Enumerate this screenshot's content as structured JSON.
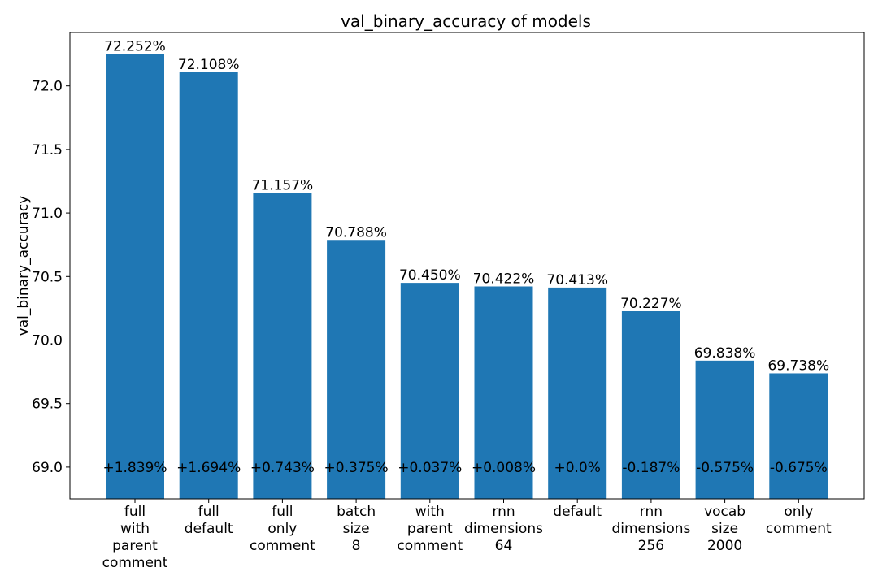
{
  "chart_data": {
    "type": "bar",
    "title": "val_binary_accuracy of models",
    "xlabel": "",
    "ylabel": "val_binary_accuracy",
    "ylim": [
      68.75,
      72.42
    ],
    "yticks": [
      "69.0",
      "69.5",
      "70.0",
      "70.5",
      "71.0",
      "71.5",
      "72.0"
    ],
    "bar_color": "#1f77b4",
    "grid": false,
    "categories": [
      [
        "full",
        "with",
        "parent",
        "comment"
      ],
      [
        "full",
        "default"
      ],
      [
        "full",
        "only",
        "comment"
      ],
      [
        "batch",
        "size",
        "8"
      ],
      [
        "with",
        "parent",
        "comment"
      ],
      [
        "rnn",
        "dimensions",
        "64"
      ],
      [
        "default"
      ],
      [
        "rnn",
        "dimensions",
        "256"
      ],
      [
        "vocab",
        "size",
        "2000"
      ],
      [
        "only",
        "comment"
      ]
    ],
    "values": [
      72.252,
      72.108,
      71.157,
      70.788,
      70.45,
      70.422,
      70.413,
      70.227,
      69.838,
      69.738
    ],
    "value_labels": [
      "72.252%",
      "72.108%",
      "71.157%",
      "70.788%",
      "70.450%",
      "70.422%",
      "70.413%",
      "70.227%",
      "69.838%",
      "69.738%"
    ],
    "delta_labels": [
      "+1.839%",
      "+1.694%",
      "+0.743%",
      "+0.375%",
      "+0.037%",
      "+0.008%",
      "+0.0%",
      "-0.187%",
      "-0.575%",
      "-0.675%"
    ]
  }
}
